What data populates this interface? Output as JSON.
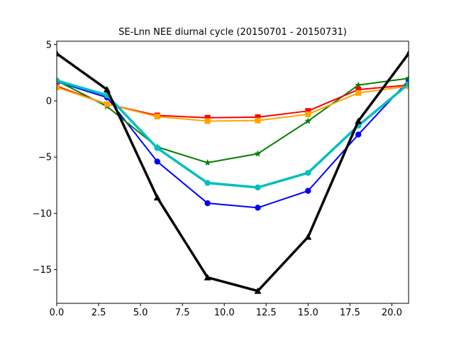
{
  "chart_data": {
    "type": "line",
    "title": "SE-Lnn NEE diurnal cycle (20150701 - 20150731)",
    "xlabel": "",
    "ylabel": "",
    "xlim": [
      0,
      21
    ],
    "ylim": [
      -18,
      5.3
    ],
    "xticks": [
      0.0,
      2.5,
      5.0,
      7.5,
      10.0,
      12.5,
      15.0,
      17.5,
      20.0
    ],
    "xtick_labels": [
      "0.0",
      "2.5",
      "5.0",
      "7.5",
      "10.0",
      "12.5",
      "15.0",
      "17.5",
      "20.0"
    ],
    "yticks": [
      5,
      0,
      -5,
      -10,
      -15
    ],
    "ytick_labels": [
      "5",
      "0",
      "−5",
      "−10",
      "−15"
    ],
    "grid": false,
    "x": [
      0,
      3,
      6,
      9,
      12,
      15,
      18,
      21
    ],
    "series": [
      {
        "color": "#0000ff",
        "marker": "circle",
        "width": 2,
        "values": [
          1.7,
          0.3,
          -5.4,
          -9.1,
          -9.5,
          -8.0,
          -3.0,
          1.8
        ]
      },
      {
        "color": "#008000",
        "marker": "star",
        "width": 2,
        "values": [
          1.8,
          -0.5,
          -4.1,
          -5.5,
          -4.7,
          -1.8,
          1.4,
          2.0
        ]
      },
      {
        "color": "#ff0000",
        "marker": "square",
        "width": 2,
        "values": [
          1.3,
          -0.3,
          -1.3,
          -1.5,
          -1.45,
          -0.9,
          1.0,
          1.4
        ]
      },
      {
        "color": "#ffa500",
        "marker": "square",
        "width": 2,
        "values": [
          1.2,
          -0.3,
          -1.4,
          -1.8,
          -1.75,
          -1.2,
          0.7,
          1.3
        ]
      },
      {
        "color": "#00bfbf",
        "marker": "circle",
        "width": 3.5,
        "values": [
          1.8,
          0.5,
          -4.2,
          -7.3,
          -7.7,
          -6.4,
          -2.2,
          1.5
        ]
      },
      {
        "color": "#000000",
        "marker": "triangle",
        "width": 3.5,
        "values": [
          4.2,
          1.0,
          -8.6,
          -15.7,
          -16.9,
          -12.1,
          -1.8,
          4.2
        ]
      }
    ]
  }
}
